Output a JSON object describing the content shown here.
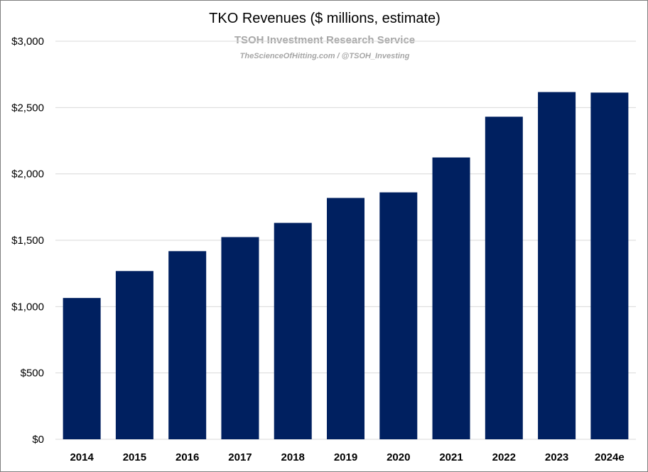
{
  "chart_data": {
    "type": "bar",
    "title": "TKO Revenues ($ millions, estimate)",
    "subtitle": "TSOH Investment Research Service",
    "credit": "TheScienceOfHitting.com / @TSOH_Investing",
    "categories": [
      "2014",
      "2015",
      "2016",
      "2017",
      "2018",
      "2019",
      "2020",
      "2021",
      "2022",
      "2023",
      "2024e"
    ],
    "values": [
      1065,
      1268,
      1418,
      1524,
      1631,
      1819,
      1861,
      2124,
      2431,
      2617,
      2613
    ],
    "ylim": [
      0,
      3000
    ],
    "yticks": [
      0,
      500,
      1000,
      1500,
      2000,
      2500,
      3000
    ],
    "ytick_labels": [
      "$0",
      "$500",
      "$1,000",
      "$1,500",
      "$2,000",
      "$2,500",
      "$3,000"
    ],
    "grid": true,
    "bar_color": "#002060",
    "grid_color": "#d9d9d9"
  }
}
